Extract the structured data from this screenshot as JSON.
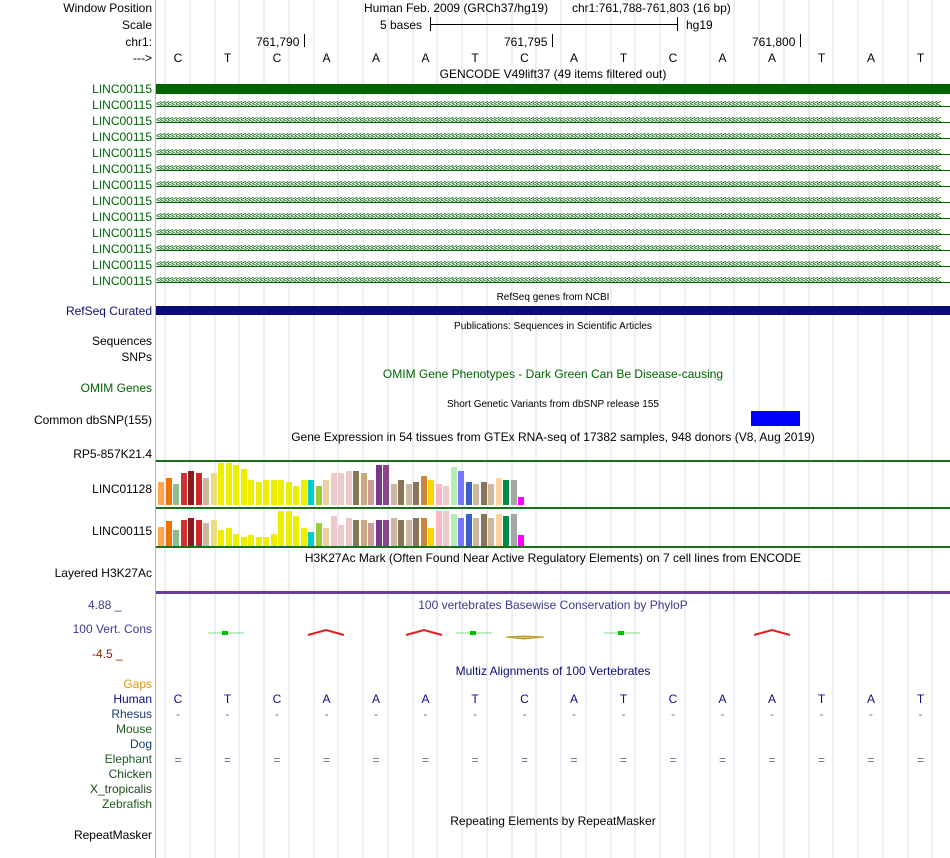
{
  "header": {
    "window_position_label": "Window Position",
    "scale_label": "Scale",
    "chr_label": "chr1:",
    "arrow_label": "--->",
    "assembly": "Human Feb. 2009 (GRCh37/hg19)",
    "position": "chr1:761,788-761,803 (16 bp)",
    "scale_text": "5 bases",
    "db": "hg19",
    "ticks": [
      "761,790",
      "761,795",
      "761,800"
    ]
  },
  "dna": {
    "bases": [
      "C",
      "T",
      "C",
      "A",
      "A",
      "A",
      "T",
      "C",
      "A",
      "T",
      "C",
      "A",
      "A",
      "T",
      "A",
      "T"
    ],
    "color": "#000000"
  },
  "gencode": {
    "title": "GENCODE V49lift37 (49 items filtered out)",
    "genes": [
      "LINC00115",
      "LINC00115",
      "LINC00115",
      "LINC00115",
      "LINC00115",
      "LINC00115",
      "LINC00115",
      "LINC00115",
      "LINC00115",
      "LINC00115",
      "LINC00115",
      "LINC00115",
      "LINC00115"
    ],
    "color": "#006400",
    "strand_arrows": "<<<<<<<<<<<<<<<<<<<<<<<<<<<<<<<<<<<<<<<<<<<<<<<<<<<<<<<<<<<<<<<<<<<<<<<<<<<<<<<<<<<<<<<<<<<<<<<<<<<<<<<<<<<<<<<<<<<<<<<<<<<<<<<<<<<<<<<<<<<<<<<<<<<<<<<<<<<<<<<<<<<<<<<<<<<<<<<<<<<<<<<<<<<<<<<<<<<<<<<<<<<<"
  },
  "refseq": {
    "title": "RefSeq genes from NCBI",
    "label": "RefSeq Curated",
    "color": "#0c0c78"
  },
  "publications": {
    "title": "Publications: Sequences in Scientific Articles"
  },
  "sequences": {
    "label": "Sequences"
  },
  "snps": {
    "label": "SNPs"
  },
  "omim": {
    "label": "OMIM Genes",
    "title": "OMIM Gene Phenotypes - Dark Green Can Be Disease-causing",
    "color": "#006400"
  },
  "dbsnp": {
    "label": "Common dbSNP(155)",
    "title": "Short Genetic Variants from dbSNP release 155",
    "color": "#0000ff"
  },
  "gtex": {
    "title": "Gene Expression in 54 tissues from GTEx RNA-seq of 17382 samples, 948 donors (V8, Aug 2019)",
    "genes": [
      "RP5-857K21.4",
      "LINC01128",
      "LINC00115"
    ],
    "colors": [
      "#ffa54f",
      "#ee7600",
      "#8fbc8f",
      "#cd3333",
      "#8b1a1a",
      "#cd2626",
      "#cdb79e",
      "#eedc82",
      "#eeee00",
      "#eeee00",
      "#eeee00",
      "#eeee00",
      "#eeee00",
      "#eeee00",
      "#eeee00",
      "#eeee00",
      "#eeee00",
      "#eeee00",
      "#eeee00",
      "#eeee00",
      "#00cdcd",
      "#9acd32",
      "#eecfa1",
      "#eec9c9",
      "#eec9c9",
      "#eec9c9",
      "#8b7355",
      "#cdaa7d",
      "#cd9b9b",
      "#7a378b",
      "#8b4789",
      "#cdb79e",
      "#8b7355",
      "#cdb79e",
      "#8b7355",
      "#cd853f",
      "#ffd700",
      "#ffb6c1",
      "#eec9c9",
      "#b4eeb4",
      "#7777ff",
      "#3a5fcd",
      "#cdb79e",
      "#8b7355",
      "#cdb79e",
      "#ffd39b",
      "#008b45",
      "#a6a6a6",
      "#ff00ff"
    ],
    "values_linc01128": [
      0.55,
      0.65,
      0.5,
      0.75,
      0.8,
      0.75,
      0.65,
      0.75,
      1.0,
      1.0,
      0.95,
      0.85,
      0.6,
      0.55,
      0.6,
      0.6,
      0.6,
      0.55,
      0.45,
      0.6,
      0.6,
      0.45,
      0.6,
      0.75,
      0.75,
      0.8,
      0.8,
      0.75,
      0.6,
      0.95,
      0.95,
      0.5,
      0.6,
      0.5,
      0.55,
      0.7,
      0.6,
      0.5,
      0.45,
      0.9,
      0.8,
      0.55,
      0.5,
      0.55,
      0.5,
      0.65,
      0.6,
      0.6,
      0.2
    ],
    "values_linc00115": [
      0.55,
      0.7,
      0.45,
      0.75,
      0.8,
      0.75,
      0.65,
      0.75,
      0.45,
      0.5,
      0.35,
      0.25,
      0.3,
      0.25,
      0.25,
      0.35,
      1.0,
      1.0,
      0.85,
      0.5,
      0.4,
      0.65,
      0.5,
      0.85,
      0.6,
      0.8,
      0.75,
      0.75,
      0.65,
      0.75,
      0.75,
      0.8,
      0.75,
      0.75,
      0.8,
      0.8,
      0.5,
      1.0,
      1.0,
      0.9,
      0.8,
      0.9,
      0.8,
      0.9,
      0.8,
      0.9,
      0.85,
      0.9,
      0.3
    ],
    "line_color": "#1a6e1a"
  },
  "h3k27ac": {
    "title": "H3K27Ac Mark (Often Found Near Active Regulatory Elements) on 7 cell lines from ENCODE",
    "label": "Layered H3K27Ac"
  },
  "conservation": {
    "title": "100 vertebrates Basewise Conservation by PhyloP",
    "label": "100 Vert. Cons",
    "max": "4.88 _",
    "min": "-4.5 _",
    "title_color": "#3b3b8f",
    "max_color": "#3b3b8f",
    "min_color": "#8b2500"
  },
  "multiz": {
    "title": "Multiz Alignments of 100 Vertebrates",
    "gaps_label": "Gaps",
    "species": [
      "Human",
      "Rhesus",
      "Mouse",
      "Dog",
      "Elephant",
      "Chicken",
      "X_tropicalis",
      "Zebrafish"
    ],
    "rhesus_marks": [
      "-",
      "-",
      "-",
      "-",
      "-",
      "-",
      "-",
      "-",
      "-",
      "-",
      "-",
      "-",
      "-",
      "-",
      "-",
      "-"
    ],
    "elephant_marks": [
      "=",
      "=",
      "=",
      "=",
      "=",
      "=",
      "=",
      "=",
      "=",
      "=",
      "=",
      "=",
      "=",
      "=",
      "=",
      "="
    ]
  },
  "repeatmasker": {
    "title": "Repeating Elements by RepeatMasker",
    "label": "RepeatMasker"
  }
}
